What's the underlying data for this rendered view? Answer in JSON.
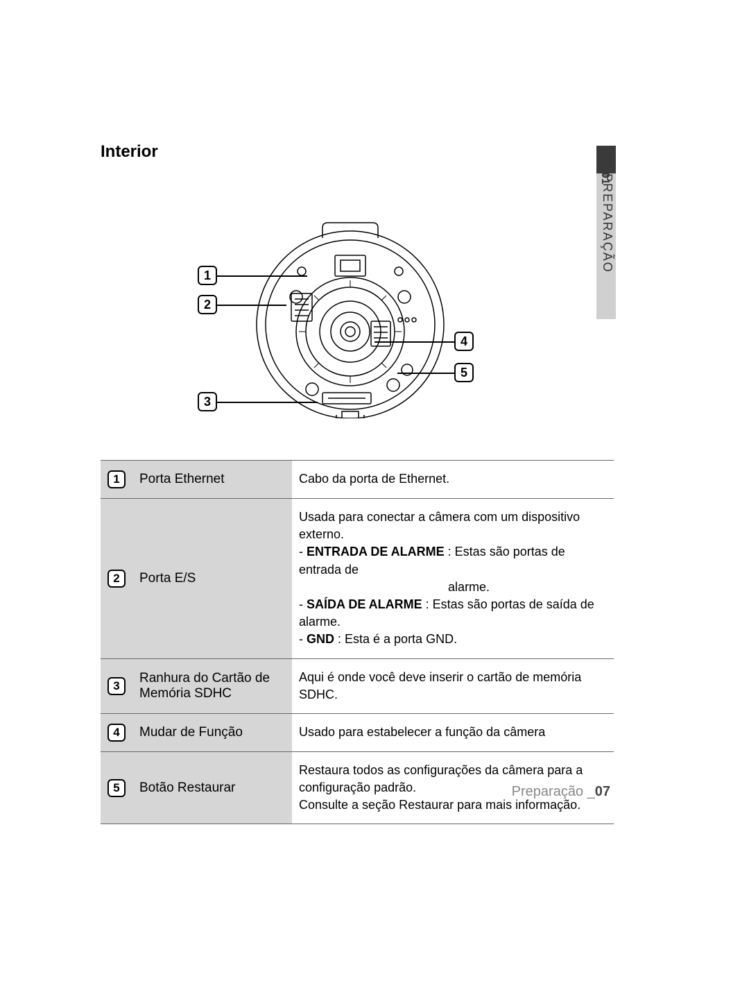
{
  "section_title": "Interior",
  "side_tab": {
    "number": "01",
    "label": "PREPARAÇÃO"
  },
  "callouts": {
    "c1": "1",
    "c2": "2",
    "c3": "3",
    "c4": "4",
    "c5": "5"
  },
  "table": {
    "rows": [
      {
        "num": "1",
        "name": "Porta Ethernet",
        "desc_lines": [
          "Cabo da porta de Ethernet."
        ]
      },
      {
        "num": "2",
        "name": "Porta E/S",
        "desc_lines": [
          "Usada para conectar a câmera com um dispositivo externo.",
          "- <b>ENTRADA DE ALARME</b> : Estas são portas de entrada de",
          "&nbsp;&nbsp;&nbsp;&nbsp;&nbsp;&nbsp;&nbsp;&nbsp;&nbsp;&nbsp;&nbsp;&nbsp;&nbsp;&nbsp;&nbsp;&nbsp;&nbsp;&nbsp;&nbsp;&nbsp;&nbsp;&nbsp;&nbsp;&nbsp;&nbsp;&nbsp;&nbsp;&nbsp;&nbsp;&nbsp;&nbsp;&nbsp;&nbsp;&nbsp;&nbsp;&nbsp;&nbsp;&nbsp;&nbsp;&nbsp;&nbsp;&nbsp;&nbsp;alarme.",
          "- <b>SAÍDA DE ALARME</b> : Estas são portas de saída de alarme.",
          "- <b>GND</b> : Esta é a porta GND."
        ]
      },
      {
        "num": "3",
        "name": "Ranhura do Cartão de Memória SDHC",
        "desc_lines": [
          "Aqui é onde você deve inserir o cartão de memória SDHC."
        ]
      },
      {
        "num": "4",
        "name": "Mudar de Função",
        "desc_lines": [
          "Usado para estabelecer a função da câmera"
        ]
      },
      {
        "num": "5",
        "name": "Botão Restaurar",
        "desc_lines": [
          "Restaura todos as configurações da câmera para a configuração padrão.",
          "Consulte a seção Restaurar para mais informação."
        ]
      }
    ]
  },
  "footer": {
    "label": "Preparação _",
    "page": "07"
  },
  "colors": {
    "row_bg": "#d6d6d6",
    "text": "#000000",
    "footer_gray": "#888888"
  }
}
